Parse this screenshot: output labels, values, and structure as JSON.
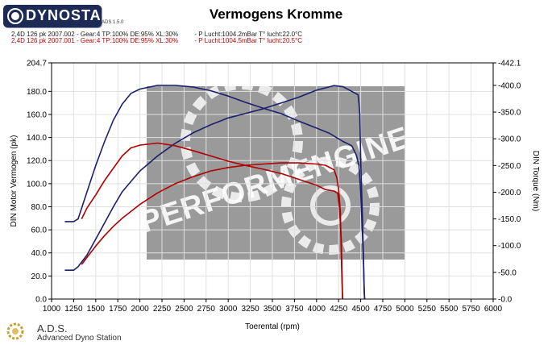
{
  "header": {
    "logo_text": "DYNOSTAR",
    "logo_sub": "ADS 1.5.0",
    "title": "Vermogens Kromme"
  },
  "runs": [
    {
      "label": "2,4D 126 pk 2007.002 - Gear:4 TP:100% DE:95% XL:30%",
      "conditions": "- P Lucht:1004.2mBar T° lucht:22.0°C",
      "color": "#1a1a1a"
    },
    {
      "label": "2,4D 126 pk 2007.001 - Gear:4 TP:100% DE:95% XL:30%",
      "conditions": "- P Lucht:1004.5mBar T° lucht:20.5°C",
      "color": "#c00000"
    }
  ],
  "footer": {
    "name": "A.D.S.",
    "subtitle": "Advanced Dyno Station"
  },
  "watermark": "PERFORMENGINE",
  "chart_data": {
    "type": "line",
    "xlabel": "Toerental (rpm)",
    "ylabel": "DIN Motor Vermogen (pk)",
    "y2label": "DIN Torque (Nm)",
    "xlim": [
      1000,
      6000
    ],
    "ylim": [
      0,
      204.7
    ],
    "y2lim": [
      0,
      442.1
    ],
    "grid": true,
    "x_ticks": [
      1000,
      1250,
      1500,
      1750,
      2000,
      2250,
      2500,
      2750,
      3000,
      3250,
      3500,
      3750,
      4000,
      4250,
      4500,
      4750,
      5000,
      5250,
      5500,
      5750,
      6000
    ],
    "x_tick_labels": [
      "1000",
      "1250",
      "1500",
      "1750",
      "2000",
      "2250",
      "2500",
      "2750",
      "3000",
      "3250",
      "3500",
      "3750",
      "4000",
      "4250",
      "4500",
      "4750",
      "5000",
      "5250",
      "5500",
      "5750",
      "6000"
    ],
    "y_ticks": [
      0,
      20,
      40,
      60,
      80,
      100,
      120,
      140,
      160,
      180,
      204.7
    ],
    "y_tick_labels": [
      "0.0",
      "20.0",
      "40.0",
      "60.0",
      "80.0",
      "100.0",
      "120.0",
      "140.0",
      "160.0",
      "180.0",
      "204.7"
    ],
    "y2_ticks": [
      0,
      50,
      100,
      150,
      200,
      250,
      300,
      350,
      400,
      442.1
    ],
    "y2_tick_labels": [
      "-0.0",
      "-50.0",
      "-100.0",
      "-150.0",
      "-200.0",
      "-250.0",
      "-300.0",
      "-350.0",
      "-400.0",
      "-442.1"
    ],
    "series": [
      {
        "run": 1,
        "quantity": "power",
        "axis": "y",
        "color": "#1c1f6e",
        "points": [
          [
            1150,
            25
          ],
          [
            1250,
            25
          ],
          [
            1300,
            28
          ],
          [
            1400,
            38
          ],
          [
            1500,
            52
          ],
          [
            1600,
            66
          ],
          [
            1700,
            80
          ],
          [
            1800,
            93
          ],
          [
            1900,
            102
          ],
          [
            2000,
            111
          ],
          [
            2200,
            124
          ],
          [
            2400,
            135
          ],
          [
            2600,
            144
          ],
          [
            2800,
            151
          ],
          [
            3000,
            157
          ],
          [
            3200,
            161
          ],
          [
            3400,
            165
          ],
          [
            3600,
            170
          ],
          [
            3800,
            175
          ],
          [
            4000,
            181
          ],
          [
            4150,
            184
          ],
          [
            4200,
            185
          ],
          [
            4300,
            184
          ],
          [
            4400,
            180
          ],
          [
            4470,
            177
          ],
          [
            4480,
            170
          ],
          [
            4490,
            160
          ],
          [
            4500,
            120
          ],
          [
            4510,
            95
          ],
          [
            4520,
            70
          ],
          [
            4530,
            40
          ],
          [
            4540,
            8
          ],
          [
            4545,
            0
          ]
        ]
      },
      {
        "run": 1,
        "quantity": "torque",
        "axis": "y2",
        "color": "#1c1f6e",
        "points": [
          [
            1150,
            145
          ],
          [
            1250,
            145
          ],
          [
            1300,
            150
          ],
          [
            1400,
            200
          ],
          [
            1500,
            250
          ],
          [
            1600,
            295
          ],
          [
            1700,
            335
          ],
          [
            1800,
            365
          ],
          [
            1900,
            385
          ],
          [
            2000,
            393
          ],
          [
            2200,
            400
          ],
          [
            2400,
            400
          ],
          [
            2600,
            397
          ],
          [
            2800,
            390
          ],
          [
            3000,
            380
          ],
          [
            3200,
            368
          ],
          [
            3400,
            357
          ],
          [
            3600,
            347
          ],
          [
            3800,
            333
          ],
          [
            4000,
            320
          ],
          [
            4150,
            310
          ],
          [
            4200,
            305
          ],
          [
            4300,
            295
          ],
          [
            4400,
            287
          ],
          [
            4450,
            270
          ],
          [
            4480,
            250
          ],
          [
            4500,
            200
          ],
          [
            4510,
            160
          ],
          [
            4520,
            120
          ],
          [
            4530,
            80
          ],
          [
            4540,
            10
          ],
          [
            4545,
            0
          ]
        ]
      },
      {
        "run": 2,
        "quantity": "power",
        "axis": "y",
        "color": "#b00000",
        "points": [
          [
            1340,
            30
          ],
          [
            1400,
            36
          ],
          [
            1500,
            46
          ],
          [
            1600,
            55
          ],
          [
            1700,
            63
          ],
          [
            1800,
            70
          ],
          [
            2000,
            82
          ],
          [
            2200,
            92
          ],
          [
            2400,
            100
          ],
          [
            2600,
            106
          ],
          [
            2800,
            111
          ],
          [
            3000,
            114
          ],
          [
            3200,
            116
          ],
          [
            3400,
            117
          ],
          [
            3600,
            118
          ],
          [
            3800,
            118
          ],
          [
            4000,
            117
          ],
          [
            4100,
            116
          ],
          [
            4200,
            112
          ],
          [
            4230,
            105
          ],
          [
            4250,
            95
          ],
          [
            4270,
            75
          ],
          [
            4280,
            40
          ],
          [
            4290,
            10
          ],
          [
            4295,
            0
          ]
        ]
      },
      {
        "run": 2,
        "quantity": "torque",
        "axis": "y2",
        "color": "#b00000",
        "points": [
          [
            1340,
            150
          ],
          [
            1400,
            170
          ],
          [
            1500,
            195
          ],
          [
            1600,
            222
          ],
          [
            1700,
            245
          ],
          [
            1800,
            268
          ],
          [
            1900,
            283
          ],
          [
            2000,
            288
          ],
          [
            2200,
            292
          ],
          [
            2400,
            287
          ],
          [
            2600,
            278
          ],
          [
            2800,
            268
          ],
          [
            3000,
            258
          ],
          [
            3200,
            250
          ],
          [
            3400,
            243
          ],
          [
            3600,
            235
          ],
          [
            3800,
            224
          ],
          [
            4000,
            213
          ],
          [
            4100,
            205
          ],
          [
            4200,
            202
          ],
          [
            4240,
            198
          ],
          [
            4260,
            170
          ],
          [
            4280,
            110
          ],
          [
            4290,
            40
          ],
          [
            4295,
            0
          ]
        ]
      }
    ]
  }
}
